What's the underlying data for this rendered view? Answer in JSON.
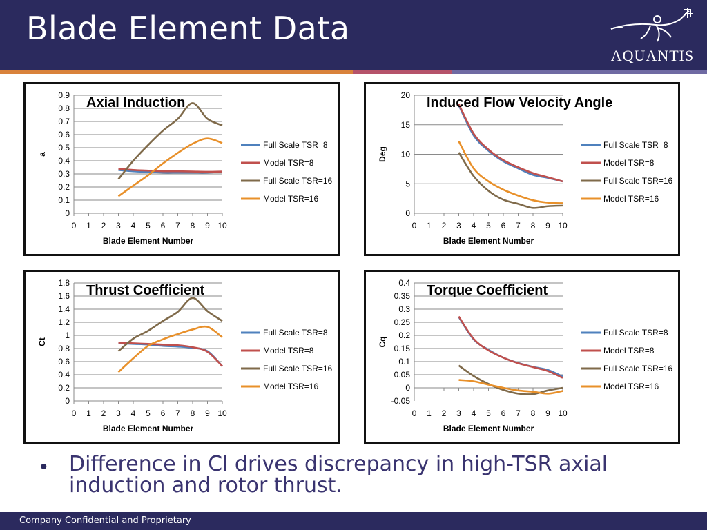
{
  "header": {
    "title": "Blade Element Data",
    "logo_text": "AQUANTIS",
    "logo_icon": "trident-figure-icon",
    "colors": {
      "background": "#2b2a5e",
      "stripe_orange": "#d9823b",
      "stripe_rose": "#b5536a",
      "stripe_lavender": "#6f6aa3"
    }
  },
  "body": {
    "bullet": "Difference in Cl drives discrepancy in high-TSR axial induction and rotor thrust."
  },
  "footer": {
    "text": "Company Confidential and Proprietary"
  },
  "chart_data": [
    {
      "type": "line",
      "title": "Axial Induction",
      "xlabel": "Blade Element Number",
      "ylabel": "a",
      "xlim": [
        0,
        10
      ],
      "ylim": [
        0,
        0.9
      ],
      "xticks": [
        0,
        1,
        2,
        3,
        4,
        5,
        6,
        7,
        8,
        9,
        10
      ],
      "yticks": [
        0,
        0.1,
        0.2,
        0.3,
        0.4,
        0.5,
        0.6,
        0.7,
        0.8,
        0.9
      ],
      "grid": true,
      "legend": "right",
      "series": [
        {
          "name": "Full Scale TSR=8",
          "color": "#4f81bd",
          "x": [
            3,
            4,
            5,
            6,
            7,
            8,
            9,
            10
          ],
          "values": [
            0.33,
            0.32,
            0.315,
            0.31,
            0.31,
            0.31,
            0.31,
            0.315
          ]
        },
        {
          "name": "Model TSR=8",
          "color": "#c0504d",
          "x": [
            3,
            4,
            5,
            6,
            7,
            8,
            9,
            10
          ],
          "values": [
            0.34,
            0.33,
            0.325,
            0.32,
            0.32,
            0.318,
            0.316,
            0.318
          ]
        },
        {
          "name": "Full Scale TSR=16",
          "color": "#7f6a4a",
          "x": [
            3,
            4,
            5,
            6,
            7,
            8,
            9,
            10
          ],
          "values": [
            0.26,
            0.4,
            0.52,
            0.63,
            0.72,
            0.84,
            0.72,
            0.67
          ]
        },
        {
          "name": "Model TSR=16",
          "color": "#e8902a",
          "x": [
            3,
            4,
            5,
            6,
            7,
            8,
            9,
            10
          ],
          "values": [
            0.13,
            0.21,
            0.29,
            0.38,
            0.46,
            0.53,
            0.57,
            0.535
          ]
        }
      ]
    },
    {
      "type": "line",
      "title": "Induced Flow Velocity Angle",
      "xlabel": "Blade Element Number",
      "ylabel": "Deg",
      "xlim": [
        0,
        10
      ],
      "ylim": [
        0,
        20
      ],
      "xticks": [
        0,
        1,
        2,
        3,
        4,
        5,
        6,
        7,
        8,
        9,
        10
      ],
      "yticks": [
        0,
        5,
        10,
        15,
        20
      ],
      "grid": true,
      "legend": "right",
      "series": [
        {
          "name": "Full Scale TSR=8",
          "color": "#4f81bd",
          "x": [
            3,
            4,
            5,
            6,
            7,
            8,
            9,
            10
          ],
          "values": [
            18.3,
            13.2,
            10.6,
            8.8,
            7.6,
            6.5,
            6.0,
            5.4
          ]
        },
        {
          "name": "Model TSR=8",
          "color": "#c0504d",
          "x": [
            3,
            4,
            5,
            6,
            7,
            8,
            9,
            10
          ],
          "values": [
            18.5,
            13.5,
            10.8,
            9.0,
            7.8,
            6.8,
            6.1,
            5.4
          ]
        },
        {
          "name": "Full Scale TSR=16",
          "color": "#7f6a4a",
          "x": [
            3,
            4,
            5,
            6,
            7,
            8,
            9,
            10
          ],
          "values": [
            10.3,
            6.3,
            3.8,
            2.3,
            1.6,
            0.9,
            1.2,
            1.3
          ]
        },
        {
          "name": "Model TSR=16",
          "color": "#e8902a",
          "x": [
            3,
            4,
            5,
            6,
            7,
            8,
            9,
            10
          ],
          "values": [
            12.2,
            7.6,
            5.4,
            4.0,
            3.0,
            2.2,
            1.8,
            1.7
          ]
        }
      ]
    },
    {
      "type": "line",
      "title": "Thrust Coefficient",
      "xlabel": "Blade Element Number",
      "ylabel": "Ct",
      "xlim": [
        0,
        10
      ],
      "ylim": [
        0,
        1.8
      ],
      "xticks": [
        0,
        1,
        2,
        3,
        4,
        5,
        6,
        7,
        8,
        9,
        10
      ],
      "yticks": [
        0,
        0.2,
        0.4,
        0.6,
        0.8,
        1,
        1.2,
        1.4,
        1.6,
        1.8
      ],
      "grid": true,
      "legend": "right",
      "series": [
        {
          "name": "Full Scale TSR=8",
          "color": "#4f81bd",
          "x": [
            3,
            4,
            5,
            6,
            7,
            8,
            9,
            10
          ],
          "values": [
            0.88,
            0.87,
            0.86,
            0.84,
            0.83,
            0.81,
            0.76,
            0.53
          ]
        },
        {
          "name": "Model TSR=8",
          "color": "#c0504d",
          "x": [
            3,
            4,
            5,
            6,
            7,
            8,
            9,
            10
          ],
          "values": [
            0.89,
            0.88,
            0.87,
            0.86,
            0.85,
            0.82,
            0.75,
            0.53
          ]
        },
        {
          "name": "Full Scale TSR=16",
          "color": "#7f6a4a",
          "x": [
            3,
            4,
            5,
            6,
            7,
            8,
            9,
            10
          ],
          "values": [
            0.76,
            0.95,
            1.07,
            1.22,
            1.36,
            1.57,
            1.37,
            1.22
          ]
        },
        {
          "name": "Model TSR=16",
          "color": "#e8902a",
          "x": [
            3,
            4,
            5,
            6,
            7,
            8,
            9,
            10
          ],
          "values": [
            0.44,
            0.65,
            0.84,
            0.94,
            1.02,
            1.09,
            1.13,
            0.97
          ]
        }
      ]
    },
    {
      "type": "line",
      "title": "Torque Coefficient",
      "xlabel": "Blade Element Number",
      "ylabel": "Cq",
      "xlim": [
        0,
        10
      ],
      "ylim": [
        -0.05,
        0.4
      ],
      "xticks": [
        0,
        1,
        2,
        3,
        4,
        5,
        6,
        7,
        8,
        9,
        10
      ],
      "yticks": [
        -0.05,
        0,
        0.05,
        0.1,
        0.15,
        0.2,
        0.25,
        0.3,
        0.35,
        0.4
      ],
      "grid": true,
      "legend": "right",
      "series": [
        {
          "name": "Full Scale TSR=8",
          "color": "#4f81bd",
          "x": [
            3,
            4,
            5,
            6,
            7,
            8,
            9,
            10
          ],
          "values": [
            0.27,
            0.185,
            0.145,
            0.115,
            0.095,
            0.08,
            0.068,
            0.043
          ]
        },
        {
          "name": "Model TSR=8",
          "color": "#c0504d",
          "x": [
            3,
            4,
            5,
            6,
            7,
            8,
            9,
            10
          ],
          "values": [
            0.272,
            0.187,
            0.143,
            0.115,
            0.094,
            0.079,
            0.064,
            0.038
          ]
        },
        {
          "name": "Full Scale TSR=16",
          "color": "#7f6a4a",
          "x": [
            3,
            4,
            5,
            6,
            7,
            8,
            9,
            10
          ],
          "values": [
            0.085,
            0.045,
            0.015,
            -0.008,
            -0.022,
            -0.024,
            -0.01,
            0.0
          ]
        },
        {
          "name": "Model TSR=16",
          "color": "#e8902a",
          "x": [
            3,
            4,
            5,
            6,
            7,
            8,
            9,
            10
          ],
          "values": [
            0.03,
            0.025,
            0.012,
            0.0,
            -0.01,
            -0.015,
            -0.022,
            -0.012
          ]
        }
      ]
    }
  ]
}
